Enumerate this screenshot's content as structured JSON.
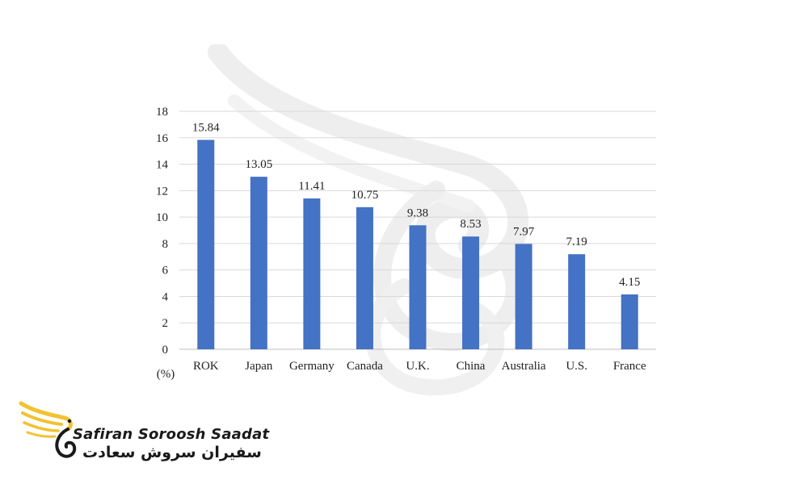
{
  "chart_data": {
    "type": "bar",
    "categories": [
      "ROK",
      "Japan",
      "Germany",
      "Canada",
      "U.K.",
      "China",
      "Australia",
      "U.S.",
      "France"
    ],
    "values": [
      15.84,
      13.05,
      11.41,
      10.75,
      9.38,
      8.53,
      7.97,
      7.19,
      4.15
    ],
    "value_labels": [
      "15.84",
      "13.05",
      "11.41",
      "10.75",
      "9.38",
      "8.53",
      "7.97",
      "7.19",
      "4.15"
    ],
    "title": "",
    "xlabel": "",
    "ylabel": "",
    "unit_label": "(%)",
    "ylim": [
      0,
      18
    ],
    "yticks": [
      0,
      2,
      4,
      6,
      8,
      10,
      12,
      14,
      16,
      18
    ],
    "grid": true,
    "legend": "none",
    "bar_color": "#4472C4",
    "grid_color": "#d9d9d9"
  },
  "logo": {
    "latin_text": "Safiran Soroosh Saadat",
    "persian_text": "سفیران سروش سعادت",
    "wing_color": "#F2C230",
    "icon_name": "swan-wing-logo-icon"
  },
  "watermark": {
    "icon_name": "swan-wing-watermark-icon",
    "color": "#eeeeee"
  }
}
